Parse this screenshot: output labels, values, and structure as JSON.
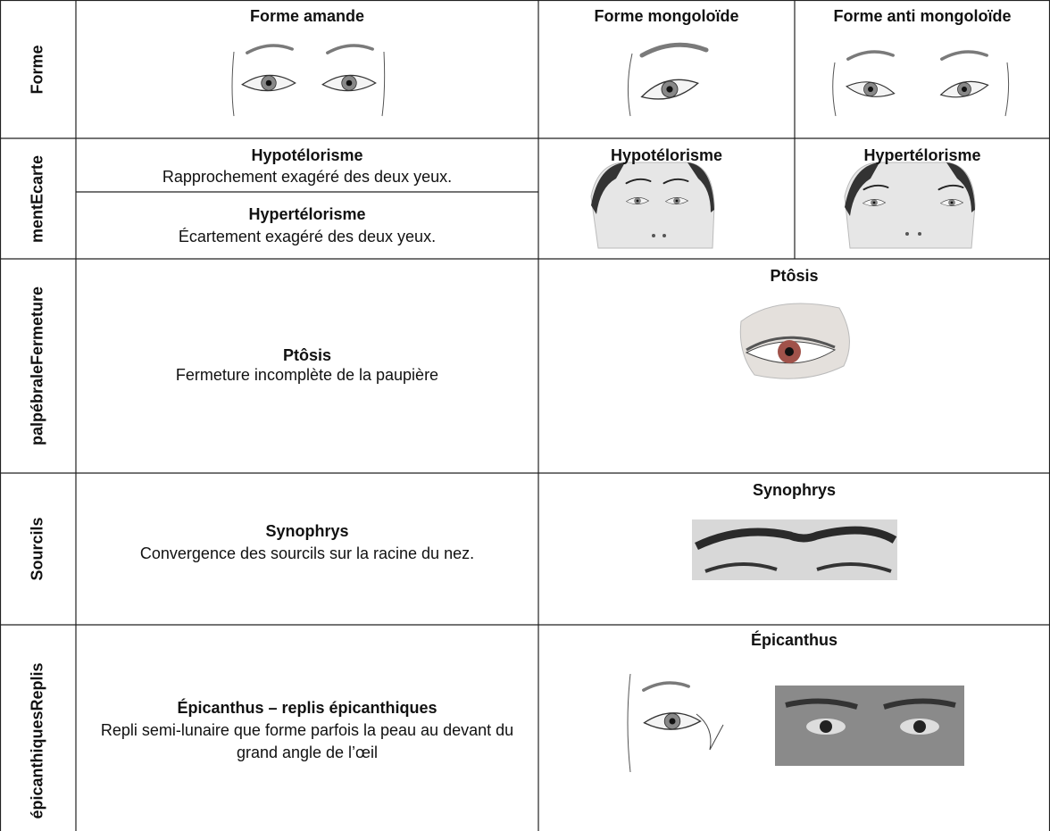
{
  "rows": [
    {
      "header": "Forme",
      "cells": [
        "Forme amande",
        "Forme mongoloïde",
        "Forme anti mongoloïde"
      ]
    },
    {
      "header": "mentEcarte",
      "definitions": [
        {
          "term": "Hypotélorisme",
          "text": "Rapprochement exagéré des deux yeux."
        },
        {
          "term": "Hypertélorisme",
          "text": "Écartement exagéré des deux yeux."
        }
      ],
      "figures": [
        "Hypotélorisme",
        "Hypertélorisme"
      ]
    },
    {
      "header": "palpébraleFermeture",
      "term": "Ptôsis",
      "text": "Fermeture incomplète de la paupière",
      "figure": "Ptôsis"
    },
    {
      "header": "Sourcils",
      "term": "Synophrys",
      "text": "Convergence des sourcils sur la racine du nez.",
      "figure": "Synophrys"
    },
    {
      "header": "épicanthiquesReplis",
      "term": "Épicanthus – replis épicanthiques",
      "text": "Repli semi-lunaire que forme parfois la peau au devant du grand angle de l’œil",
      "figure": "Épicanthus"
    }
  ]
}
